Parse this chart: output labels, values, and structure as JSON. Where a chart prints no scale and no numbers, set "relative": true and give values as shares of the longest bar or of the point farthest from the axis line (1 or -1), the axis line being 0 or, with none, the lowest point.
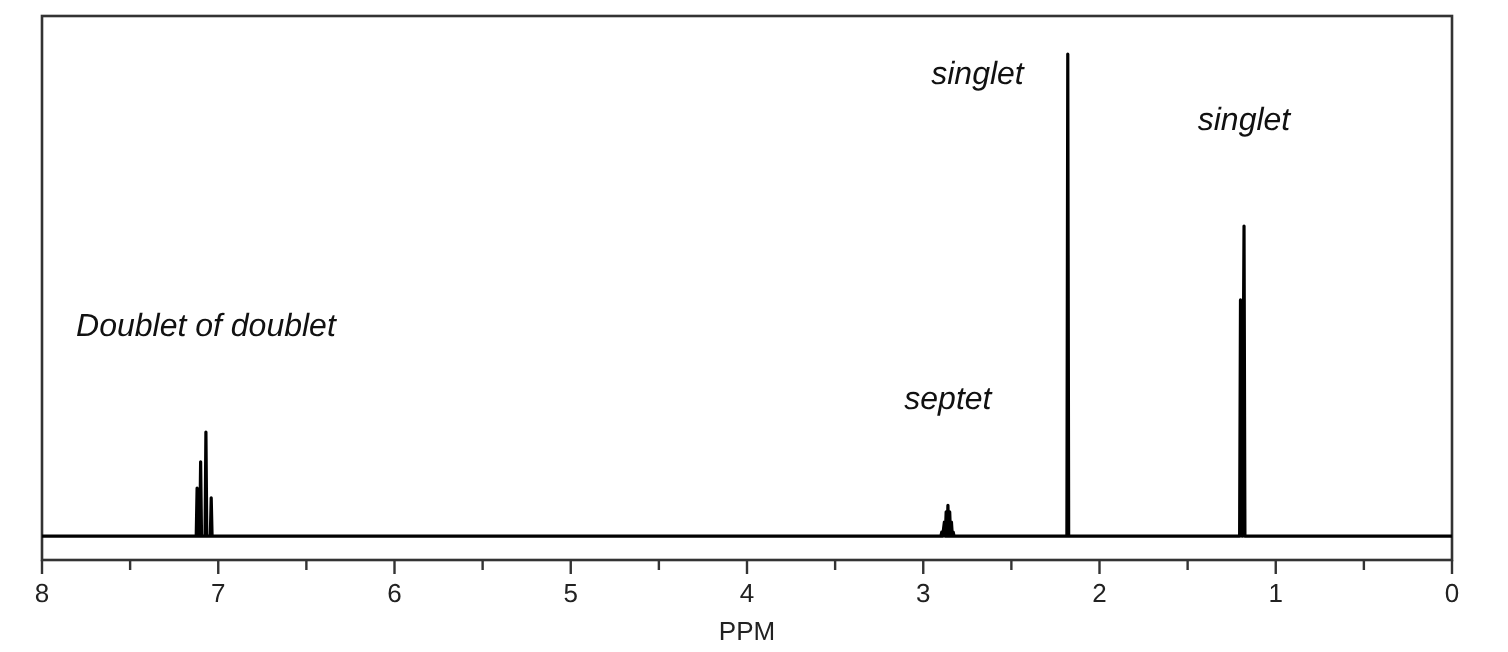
{
  "chart_data": {
    "type": "line",
    "relative": true,
    "xlabel": "PPM",
    "xlim": [
      8,
      0
    ],
    "xticks": [
      8,
      {
        "value": 7.5,
        "label": null
      },
      7,
      {
        "value": 6.5,
        "label": null
      },
      6,
      {
        "value": 5.5,
        "label": null
      },
      5,
      {
        "value": 4.5,
        "label": null
      },
      4,
      {
        "value": 3.5,
        "label": null
      },
      3,
      {
        "value": 2.5,
        "label": null
      },
      2,
      {
        "value": 1.5,
        "label": null
      },
      1,
      {
        "value": 0.5,
        "label": null
      },
      0
    ],
    "series": [
      {
        "color": "#000000",
        "x": [
          8,
          7.125,
          7.12,
          7.115,
          7.105,
          7.1,
          7.095,
          7.075,
          7.07,
          7.065,
          7.045,
          7.04,
          7.035,
          2.9,
          2.895,
          2.89,
          2.88,
          2.875,
          2.87,
          2.865,
          2.86,
          2.855,
          2.85,
          2.845,
          2.84,
          2.835,
          2.83,
          2.825,
          2.82,
          2.185,
          2.18,
          2.175,
          1.205,
          1.2,
          1.19,
          1.18,
          1.175,
          0
        ],
        "values": [
          0.047,
          0.047,
          0.142,
          0.047,
          0.047,
          0.194,
          0.047,
          0.047,
          0.253,
          0.047,
          0.047,
          0.123,
          0.047,
          0.047,
          0.055,
          0.047,
          0.075,
          0.047,
          0.095,
          0.047,
          0.108,
          0.047,
          0.095,
          0.047,
          0.075,
          0.047,
          0.055,
          0.047,
          0.047,
          0.047,
          1,
          0.047,
          0.047,
          0.514,
          0.047,
          0.66,
          0.047,
          0.047
        ]
      }
    ],
    "annotations": [
      {
        "text": "Doublet of doublet",
        "x": 7.07,
        "y": 0.253
      },
      {
        "text": "septet",
        "x": 2.86,
        "y": 0.108
      },
      {
        "text": "singlet",
        "x": 2.18,
        "y": 1
      },
      {
        "text": "singlet",
        "x": 1.18,
        "y": 0.66
      }
    ]
  }
}
